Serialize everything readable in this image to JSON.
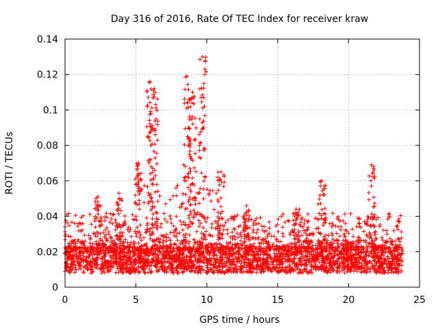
{
  "chart_data": {
    "type": "scatter",
    "title": "Day 316 of 2016, Rate Of TEC Index for receiver kraw",
    "xlabel": "GPS time / hours",
    "ylabel": "ROTI / TECUs",
    "xlim": [
      0,
      25
    ],
    "ylim": [
      0,
      0.14
    ],
    "xticks": [
      0,
      5,
      10,
      15,
      20,
      25
    ],
    "xtick_labels": [
      "0",
      "5",
      "10",
      "15",
      "20",
      "25"
    ],
    "yticks": [
      0,
      0.02,
      0.04,
      0.06,
      0.08,
      0.1,
      0.12,
      0.14
    ],
    "ytick_labels": [
      "0",
      "0.02",
      "0.04",
      "0.06",
      "0.08",
      "0.1",
      "0.12",
      "0.14"
    ],
    "grid": true,
    "marker": "+",
    "color": "#ff0000",
    "x_range_of_data": [
      0,
      23.8
    ],
    "baseline_band": [
      0.008,
      0.022
    ],
    "notable_peaks": [
      {
        "x": 5.2,
        "y": 0.07
      },
      {
        "x": 6.0,
        "y": 0.116
      },
      {
        "x": 6.3,
        "y": 0.112
      },
      {
        "x": 8.6,
        "y": 0.119
      },
      {
        "x": 9.0,
        "y": 0.11
      },
      {
        "x": 9.7,
        "y": 0.13
      },
      {
        "x": 11.0,
        "y": 0.065
      },
      {
        "x": 12.8,
        "y": 0.046
      },
      {
        "x": 16.3,
        "y": 0.044
      },
      {
        "x": 18.1,
        "y": 0.06
      },
      {
        "x": 21.6,
        "y": 0.069
      },
      {
        "x": 2.3,
        "y": 0.051
      },
      {
        "x": 3.8,
        "y": 0.053
      }
    ]
  }
}
